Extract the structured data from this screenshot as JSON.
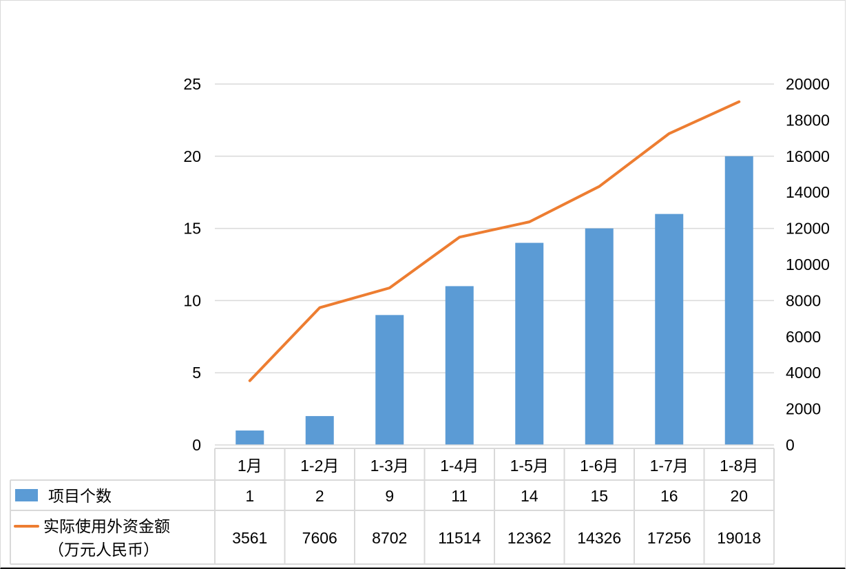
{
  "chart_data": {
    "type": "bar",
    "title": "",
    "categories": [
      "1月",
      "1-2月",
      "1-3月",
      "1-4月",
      "1-5月",
      "1-6月",
      "1-7月",
      "1-8月"
    ],
    "series": [
      {
        "name": "项目个数",
        "type": "bar",
        "axis": "left",
        "color": "#5b9bd5",
        "values": [
          1,
          2,
          9,
          11,
          14,
          15,
          16,
          20
        ]
      },
      {
        "name": "实际使用外资金额（万元人民币）",
        "type": "line",
        "axis": "right",
        "color": "#ed7d31",
        "values": [
          3561,
          7606,
          8702,
          11514,
          12362,
          14326,
          17256,
          19018
        ]
      }
    ],
    "left_axis": {
      "ylim": [
        0,
        25
      ],
      "ticks": [
        0,
        5,
        10,
        15,
        20,
        25
      ]
    },
    "right_axis": {
      "ylim": [
        0,
        20000
      ],
      "ticks": [
        0,
        2000,
        4000,
        6000,
        8000,
        10000,
        12000,
        14000,
        16000,
        18000,
        20000
      ]
    },
    "grid": true,
    "legend_position": "data-table",
    "data_table": true
  },
  "legend": {
    "bar_label": "项目个数",
    "line_label_1": "实际使用外资金额",
    "line_label_2": "（万元人民币）"
  }
}
